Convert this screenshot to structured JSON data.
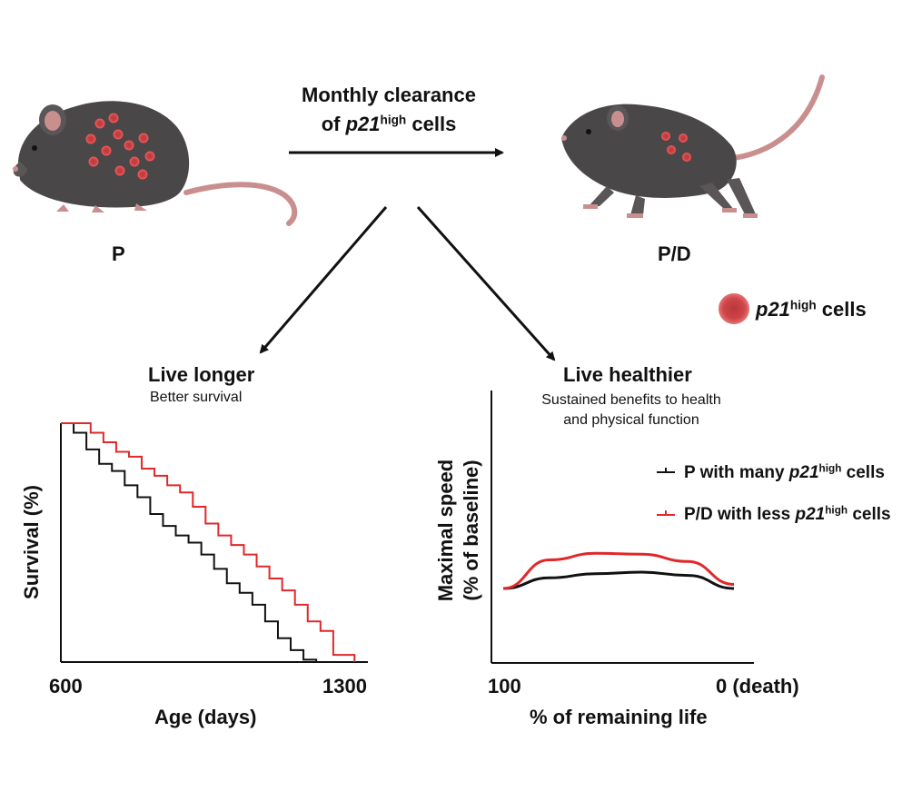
{
  "header": {
    "line1": "Monthly clearance",
    "line2_prefix": "of ",
    "line2_gene": "p21",
    "line2_sup": "high",
    "line2_suffix": " cells"
  },
  "mice": {
    "left_label": "P",
    "right_label": "P/D",
    "body_color": "#4a4748",
    "skin_color": "#c98f8f",
    "cell_color": "#e0383c"
  },
  "legend_top": {
    "gene": "p21",
    "sup": "high",
    "suffix": " cells"
  },
  "left_panel": {
    "title": "Live longer",
    "subtitle": "Better survival",
    "ylabel": "Survival (%)",
    "xlabel": "Age (days)",
    "xtick_left": "600",
    "xtick_right": "1300"
  },
  "right_panel": {
    "title": "Live healthier",
    "subtitle_line1": "Sustained benefits to health",
    "subtitle_line2": "and physical function",
    "ylabel_line1": "Maximal speed",
    "ylabel_line2": "(% of baseline)",
    "xlabel": "% of remaining life",
    "xtick_left": "100",
    "xtick_right": "0 (death)",
    "legend": [
      {
        "prefix": "P with many ",
        "gene": "p21",
        "sup": "high",
        "suffix": " cells",
        "color": "#111111"
      },
      {
        "prefix": "P/D with less ",
        "gene": "p21",
        "sup": "high",
        "suffix": " cells",
        "color": "#e0282b"
      }
    ]
  },
  "chart_data": [
    {
      "type": "line",
      "title": "Better survival",
      "xlabel": "Age (days)",
      "ylabel": "Survival (%)",
      "xlim": [
        600,
        1300
      ],
      "ylim": [
        0,
        100
      ],
      "series": [
        {
          "name": "P",
          "color": "#111111",
          "x": [
            600,
            630,
            660,
            690,
            720,
            750,
            780,
            810,
            840,
            870,
            900,
            930,
            960,
            990,
            1020,
            1050,
            1080,
            1110,
            1140,
            1170,
            1200
          ],
          "y": [
            100,
            96,
            89,
            83,
            80,
            74,
            69,
            62,
            57,
            53,
            50,
            45,
            39,
            33,
            29,
            24,
            17,
            10,
            5,
            1,
            0
          ]
        },
        {
          "name": "P/D",
          "color": "#e0282b",
          "x": [
            600,
            640,
            670,
            700,
            730,
            760,
            790,
            820,
            850,
            880,
            910,
            940,
            970,
            1000,
            1030,
            1060,
            1090,
            1120,
            1150,
            1180,
            1210,
            1240,
            1290
          ],
          "y": [
            100,
            100,
            96,
            92,
            88,
            86,
            81,
            78,
            74,
            71,
            65,
            58,
            53,
            49,
            45,
            40,
            35,
            30,
            24,
            17,
            13,
            3,
            0
          ]
        }
      ]
    },
    {
      "type": "line",
      "title": "Sustained benefits to health and physical function",
      "xlabel": "% of remaining life",
      "ylabel": "Maximal speed (% of baseline)",
      "xlim": [
        100,
        0
      ],
      "series": [
        {
          "name": "P with many p21high cells",
          "color": "#111111",
          "x": [
            100,
            80,
            60,
            40,
            20,
            0
          ],
          "y": [
            0.0,
            0.13,
            0.18,
            0.2,
            0.16,
            0.0
          ]
        },
        {
          "name": "P/D with less p21high cells",
          "color": "#e0282b",
          "x": [
            100,
            80,
            60,
            40,
            20,
            0
          ],
          "y": [
            0.0,
            0.35,
            0.43,
            0.42,
            0.33,
            0.05
          ]
        }
      ]
    }
  ]
}
